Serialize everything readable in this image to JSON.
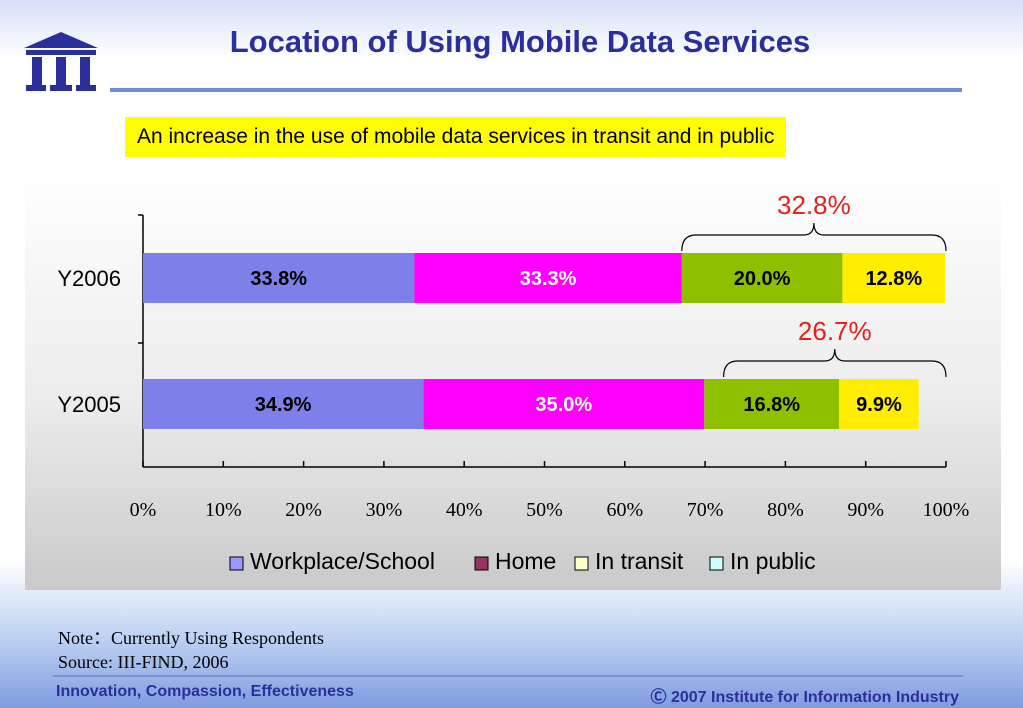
{
  "title": "Location of Using Mobile Data Services",
  "highlight": "An increase in the use of mobile data services in transit and in public",
  "chart_data": {
    "type": "bar",
    "orientation": "horizontal",
    "stacked": true,
    "categories": [
      "Y2006",
      "Y2005"
    ],
    "series": [
      {
        "name": "Workplace/School",
        "values": [
          33.8,
          34.9
        ],
        "labels": [
          "33.8%",
          "34.9%"
        ],
        "color": "#7f7fea",
        "text_color": "#000000"
      },
      {
        "name": "Home",
        "values": [
          33.3,
          35.0
        ],
        "labels": [
          "33.3%",
          "35.0%"
        ],
        "color": "#ff00ff",
        "text_color": "#ffffff"
      },
      {
        "name": "In transit",
        "values": [
          20.0,
          16.8
        ],
        "labels": [
          "20.0%",
          "16.8%"
        ],
        "color": "#8fc000",
        "text_color": "#000000"
      },
      {
        "name": "In public",
        "values": [
          12.8,
          9.9
        ],
        "labels": [
          "12.8%",
          "9.9%"
        ],
        "color": "#ffee00",
        "text_color": "#000000"
      }
    ],
    "legend_colors": [
      "#9999ff",
      "#993366",
      "#ffffcc",
      "#ccffff"
    ],
    "xlim": [
      0,
      100
    ],
    "xticks": [
      "0%",
      "10%",
      "20%",
      "30%",
      "40%",
      "50%",
      "60%",
      "70%",
      "80%",
      "90%",
      "100%"
    ],
    "annotations": [
      {
        "category": "Y2006",
        "from": 67.1,
        "to": 100,
        "text": "32.8%"
      },
      {
        "category": "Y2005",
        "from": 72.3,
        "to": 100,
        "text": "26.7%"
      }
    ],
    "annotation_color": "#e8201a",
    "legend_position": "bottom",
    "grid": false
  },
  "note": "Note：Currently Using Respondents",
  "source": "Source: III-FIND, 2006",
  "footer": {
    "left": "Innovation, Compassion, Effectiveness",
    "right": "Ⓒ 2007 Institute for Information Industry"
  },
  "logo_text": "III"
}
